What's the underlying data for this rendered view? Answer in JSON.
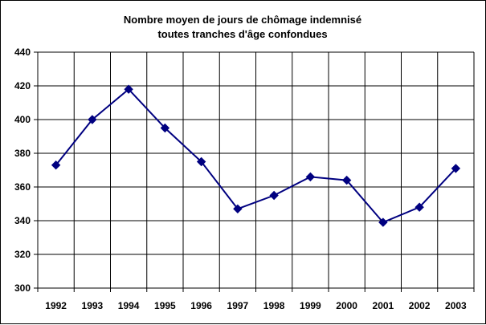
{
  "chart_data": {
    "type": "line",
    "title": [
      "Nombre moyen de jours de chômage indemnisé",
      "toutes tranches d'âge confondues"
    ],
    "xlabel": "",
    "ylabel": "",
    "x": [
      "1992",
      "1993",
      "1994",
      "1995",
      "1996",
      "1997",
      "1998",
      "1999",
      "2000",
      "2001",
      "2002",
      "2003"
    ],
    "series": [
      {
        "values": [
          373,
          400,
          418,
          395,
          375,
          347,
          355,
          366,
          364,
          339,
          348,
          371
        ]
      }
    ],
    "ylim": [
      300,
      440
    ],
    "yticks": [
      300,
      320,
      340,
      360,
      380,
      400,
      420,
      440
    ],
    "grid": true,
    "legend": "none",
    "colors": {
      "line": "#000080",
      "marker": "#000080",
      "grid": "#000000"
    }
  }
}
